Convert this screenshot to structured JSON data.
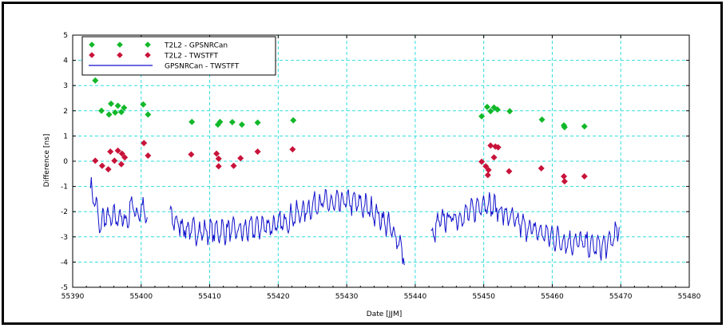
{
  "chart_data": {
    "type": "scatter",
    "xlabel": "Date [JJM]",
    "ylabel": "Difference [ns]",
    "xlim": [
      55390,
      55480
    ],
    "ylim": [
      -5,
      5
    ],
    "x_ticks": [
      55390,
      55400,
      55410,
      55420,
      55430,
      55440,
      55450,
      55460,
      55470,
      55480
    ],
    "y_ticks": [
      -5,
      -4,
      -3,
      -2,
      -1,
      0,
      1,
      2,
      3,
      4,
      5
    ],
    "grid": true,
    "legend_position": "top-left",
    "colors": {
      "green": "#11b829",
      "red": "#c8133a",
      "blue": "#1111cc",
      "grid": "#33dddd"
    },
    "series": [
      {
        "name": "T2L2 - GPSNRCan",
        "kind": "markers",
        "color": "#11b829",
        "points": [
          [
            55393.3,
            3.2
          ],
          [
            55394.2,
            2.0
          ],
          [
            55395.3,
            1.85
          ],
          [
            55395.6,
            2.28
          ],
          [
            55396.2,
            1.93
          ],
          [
            55396.6,
            2.2
          ],
          [
            55397.1,
            1.95
          ],
          [
            55397.5,
            2.12
          ],
          [
            55400.3,
            2.25
          ],
          [
            55401.0,
            1.85
          ],
          [
            55407.4,
            1.56
          ],
          [
            55411.2,
            1.45
          ],
          [
            55411.5,
            1.56
          ],
          [
            55413.3,
            1.55
          ],
          [
            55414.7,
            1.45
          ],
          [
            55417.0,
            1.53
          ],
          [
            55422.2,
            1.62
          ],
          [
            55449.7,
            1.78
          ],
          [
            55450.5,
            2.15
          ],
          [
            55451.0,
            1.98
          ],
          [
            55451.5,
            2.13
          ],
          [
            55452.0,
            2.05
          ],
          [
            55453.8,
            1.98
          ],
          [
            55458.5,
            1.65
          ],
          [
            55461.7,
            1.42
          ],
          [
            55461.8,
            1.35
          ],
          [
            55464.7,
            1.38
          ]
        ]
      },
      {
        "name": "T2L2 - TWSTFT",
        "kind": "markers",
        "color": "#c8133a",
        "points": [
          [
            55393.3,
            0.02
          ],
          [
            55394.3,
            -0.18
          ],
          [
            55395.2,
            -0.32
          ],
          [
            55395.5,
            0.38
          ],
          [
            55396.1,
            0.02
          ],
          [
            55396.6,
            0.42
          ],
          [
            55397.1,
            -0.12
          ],
          [
            55397.2,
            0.3
          ],
          [
            55397.6,
            0.15
          ],
          [
            55400.4,
            0.72
          ],
          [
            55401.0,
            0.22
          ],
          [
            55407.3,
            0.27
          ],
          [
            55411.0,
            0.3
          ],
          [
            55411.3,
            0.1
          ],
          [
            55411.3,
            -0.2
          ],
          [
            55413.5,
            -0.18
          ],
          [
            55414.5,
            0.12
          ],
          [
            55417.0,
            0.38
          ],
          [
            55422.1,
            0.47
          ],
          [
            55449.7,
            -0.02
          ],
          [
            55450.3,
            -0.2
          ],
          [
            55450.6,
            -0.55
          ],
          [
            55450.7,
            -0.35
          ],
          [
            55451.0,
            0.62
          ],
          [
            55451.5,
            0.15
          ],
          [
            55451.7,
            0.58
          ],
          [
            55452.1,
            0.55
          ],
          [
            55453.7,
            -0.4
          ],
          [
            55458.4,
            -0.28
          ],
          [
            55461.7,
            -0.6
          ],
          [
            55461.8,
            -0.8
          ],
          [
            55464.7,
            -0.6
          ]
        ]
      },
      {
        "name": "GPSNRCan - TWSTFT",
        "kind": "line",
        "color": "#1111cc",
        "segments": [
          [
            [
              55392.6,
              -1.1
            ],
            [
              55393.3,
              -1.6
            ],
            [
              55394.0,
              -2.7
            ],
            [
              55394.5,
              -2.2
            ],
            [
              55395.5,
              -2.3
            ],
            [
              55397.0,
              -2.2
            ],
            [
              55398.0,
              -2.45
            ],
            [
              55398.5,
              -1.6
            ],
            [
              55399.5,
              -2.2
            ],
            [
              55400.0,
              -1.8
            ],
            [
              55400.9,
              -2.3
            ]
          ],
          [
            [
              55404.2,
              -2.2
            ],
            [
              55405.0,
              -2.4
            ],
            [
              55407.0,
              -2.75
            ],
            [
              55409.0,
              -2.8
            ],
            [
              55412.0,
              -2.75
            ],
            [
              55415.0,
              -2.75
            ],
            [
              55418.0,
              -2.55
            ],
            [
              55420.0,
              -2.55
            ],
            [
              55422.0,
              -2.2
            ],
            [
              55424.0,
              -1.95
            ],
            [
              55426.0,
              -1.6
            ],
            [
              55428.0,
              -1.7
            ],
            [
              55430.0,
              -1.6
            ],
            [
              55432.0,
              -1.7
            ],
            [
              55434.0,
              -2.0
            ],
            [
              55436.0,
              -2.55
            ],
            [
              55437.5,
              -3.1
            ],
            [
              55438.5,
              -3.9
            ]
          ],
          [
            [
              55442.3,
              -3.1
            ],
            [
              55443.5,
              -2.4
            ],
            [
              55445.0,
              -2.25
            ],
            [
              55447.0,
              -2.2
            ],
            [
              55449.0,
              -1.85
            ],
            [
              55450.0,
              -1.6
            ],
            [
              55452.0,
              -1.9
            ],
            [
              55454.0,
              -2.3
            ],
            [
              55456.0,
              -2.6
            ],
            [
              55458.0,
              -2.8
            ],
            [
              55460.0,
              -3.0
            ],
            [
              55462.0,
              -3.2
            ],
            [
              55464.0,
              -3.2
            ],
            [
              55466.0,
              -3.4
            ],
            [
              55468.0,
              -3.35
            ],
            [
              55469.8,
              -2.7
            ]
          ]
        ]
      }
    ]
  }
}
